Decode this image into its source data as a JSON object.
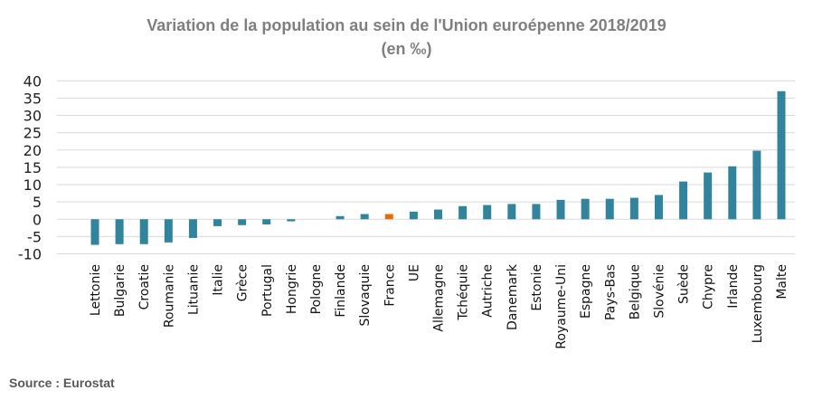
{
  "chart_data": {
    "type": "bar",
    "title": "Variation de la population au sein de l'Union euroépenne 2018/2019",
    "subtitle": "(en ‰)",
    "categories": [
      "Lettonie",
      "Bulgarie",
      "Croatie",
      "Roumanie",
      "Lituanie",
      "Italie",
      "Grèce",
      "Portugal",
      "Hongrie",
      "Pologne",
      "Finlande",
      "Slovaquie",
      "France",
      "UE",
      "Allemagne",
      "Tchéquie",
      "Autriche",
      "Danemark",
      "Estonie",
      "Royaume-Uni",
      "Espagne",
      "Pays-Bas",
      "Belgique",
      "Slovénie",
      "Suède",
      "Chypre",
      "Irlande",
      "Luxembourg",
      "Malte"
    ],
    "values": [
      -7.4,
      -7.2,
      -7.2,
      -6.7,
      -5.4,
      -2.0,
      -1.7,
      -1.5,
      -0.6,
      0.0,
      0.9,
      1.5,
      1.5,
      2.2,
      2.8,
      3.8,
      4.1,
      4.4,
      4.4,
      5.6,
      5.9,
      5.9,
      6.2,
      7.0,
      10.9,
      13.5,
      15.3,
      19.8,
      37.0
    ],
    "highlight": "France",
    "colors": {
      "bar": "#31849b",
      "highlight": "#e46c0a",
      "grid": "#d9d9d9",
      "title": "#7f7f7f"
    },
    "ylim": [
      -10,
      40
    ],
    "yticks": [
      -10,
      -5,
      0,
      5,
      10,
      15,
      20,
      25,
      30,
      35,
      40
    ],
    "xlabel": "",
    "ylabel": "",
    "grid": true,
    "legend": "none"
  },
  "source": "Source : Eurostat"
}
